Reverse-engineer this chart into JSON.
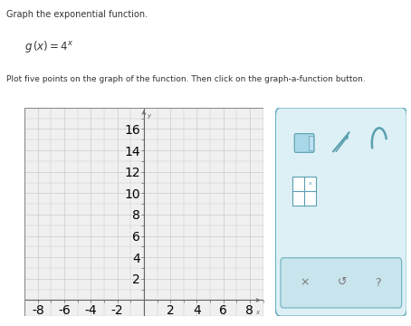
{
  "title_line1": "Graph the exponential function.",
  "formula_latex": "$g\\,(x) = 4^x$",
  "instruction": "Plot five points on the graph of the function. Then click on the graph-a-function button.",
  "xlim": [
    -9,
    9
  ],
  "ylim": [
    -1.5,
    18
  ],
  "xticks": [
    -8,
    -6,
    -4,
    -2,
    2,
    4,
    6,
    8
  ],
  "yticks": [
    2,
    4,
    6,
    8,
    10,
    12,
    14,
    16
  ],
  "grid_color": "#cccccc",
  "axis_color": "#666666",
  "tick_color": "#666666",
  "bg_color": "#ffffff",
  "plot_bg_color": "#f0f0f0",
  "border_color": "#888888",
  "xlabel": "x",
  "ylabel": "y",
  "text_color": "#333333",
  "panel_border_color": "#6ab0c0",
  "panel_bg_color": "#ddf0f5",
  "panel_btn_bg": "#c8e4ec",
  "icon_color": "#5a9fb0"
}
